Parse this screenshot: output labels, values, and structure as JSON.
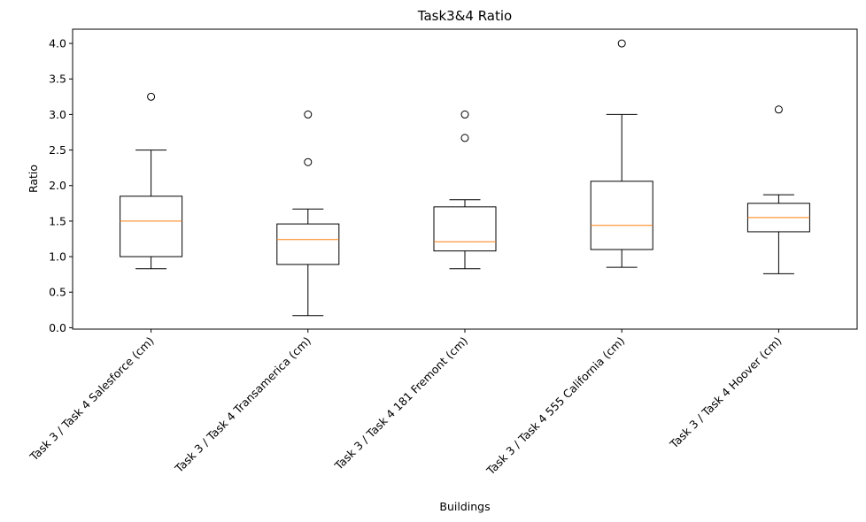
{
  "chart_data": {
    "type": "boxplot",
    "title": "Task3&4 Ratio",
    "xlabel": "Buildings",
    "ylabel": "Ratio",
    "ylim": [
      -0.02,
      4.2
    ],
    "yticks": [
      0.0,
      0.5,
      1.0,
      1.5,
      2.0,
      2.5,
      3.0,
      3.5,
      4.0
    ],
    "ytick_labels": [
      "0.0",
      "0.5",
      "1.0",
      "1.5",
      "2.0",
      "2.5",
      "3.0",
      "3.5",
      "4.0"
    ],
    "grid": false,
    "colors": {
      "box": "#000000",
      "median": "#ff7f0e",
      "background": "#ffffff"
    },
    "categories": [
      "Task 3 / Task 4 Salesforce (cm)",
      "Task 3 / Task 4 Transamerica (cm)",
      "Task 3 / Task 4 181 Fremont (cm)",
      "Task 3 / Task 4 555 California (cm)",
      "Task 3 / Task 4 Hoover (cm)"
    ],
    "boxes": [
      {
        "whisker_low": 0.83,
        "q1": 1.0,
        "median": 1.5,
        "q3": 1.85,
        "whisker_high": 2.5,
        "outliers": [
          3.25
        ]
      },
      {
        "whisker_low": 0.17,
        "q1": 0.89,
        "median": 1.24,
        "q3": 1.46,
        "whisker_high": 1.67,
        "outliers": [
          2.33,
          3.0
        ]
      },
      {
        "whisker_low": 0.83,
        "q1": 1.08,
        "median": 1.21,
        "q3": 1.7,
        "whisker_high": 1.8,
        "outliers": [
          2.67,
          3.0
        ]
      },
      {
        "whisker_low": 0.85,
        "q1": 1.1,
        "median": 1.44,
        "q3": 2.06,
        "whisker_high": 3.0,
        "outliers": [
          4.0
        ]
      },
      {
        "whisker_low": 0.76,
        "q1": 1.35,
        "median": 1.55,
        "q3": 1.75,
        "whisker_high": 1.87,
        "outliers": [
          3.07
        ]
      }
    ]
  }
}
